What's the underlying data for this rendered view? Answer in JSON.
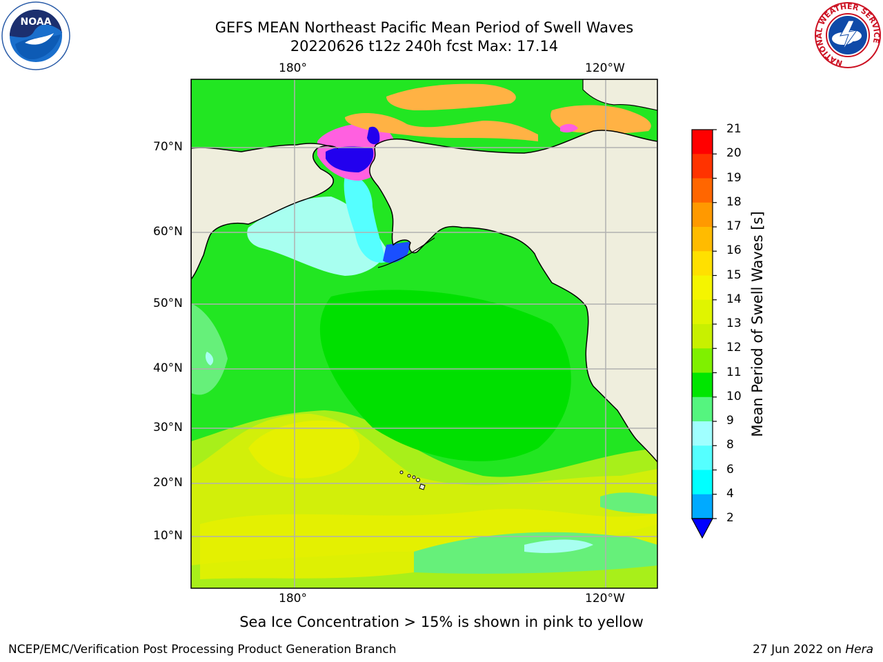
{
  "title": {
    "line1": "GEFS MEAN Northeast Pacific Mean Period of Swell Waves",
    "line2": "20220626 t12z 240h fcst   Max: 17.14"
  },
  "map": {
    "lon_top": [
      "180°",
      "120°W"
    ],
    "lon_bottom": [
      "180°",
      "120°W"
    ],
    "lat_labels": [
      "70°N",
      "60°N",
      "50°N",
      "40°N",
      "30°N",
      "20°N",
      "10°N"
    ],
    "colors": {
      "land": "#efeedd",
      "coast": "#000000",
      "grid": "#b0b0b0"
    }
  },
  "colorbar": {
    "title": "Mean Period of Swell Waves [s]",
    "ticks": [
      "21",
      "20",
      "19",
      "18",
      "17",
      "16",
      "15",
      "14",
      "13",
      "12",
      "11",
      "10",
      "9",
      "8",
      "6",
      "4",
      "2"
    ],
    "colors": [
      "#ff0000",
      "#ff3300",
      "#ff6600",
      "#ff9900",
      "#ffbb00",
      "#ffe000",
      "#f5f500",
      "#e0f500",
      "#c8f000",
      "#7ff000",
      "#00e600",
      "#55f57f",
      "#a0ffff",
      "#55ffff",
      "#00ffff",
      "#00aaff",
      "#0066ff"
    ],
    "extend_color": "#0000ff"
  },
  "caption": "Sea Ice Concentration > 15% is shown in pink to yellow",
  "footer": {
    "org": "NCEP/EMC/Verification Post Processing Product Generation Branch",
    "date": "27 Jun 2022 on ",
    "host": "Hera"
  },
  "logos": {
    "noaa": "NOAA",
    "nws_ring": "NATIONAL WEATHER SERVICE"
  }
}
